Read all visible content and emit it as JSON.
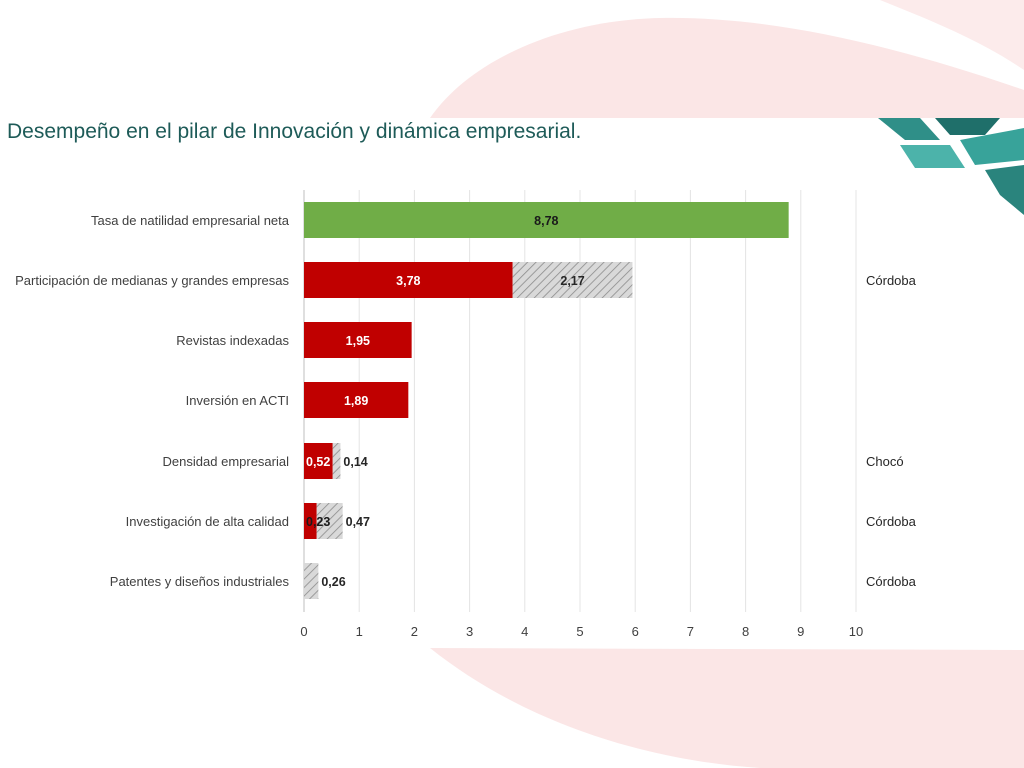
{
  "slide": {
    "title": "Desempeño en el pilar de Innovación y dinámica empresarial."
  },
  "colors": {
    "top_bar": "#70ad47",
    "main_bar": "#c00000",
    "gap_fill": "#d9d9d9",
    "gap_hatch": "#8c8c8c",
    "title": "#1e5b58",
    "accent_shape": "#fbe4e4",
    "logo_teal": "#2e8b84"
  },
  "chart_data": {
    "type": "bar",
    "orientation": "horizontal",
    "stacked": true,
    "title": "",
    "xlabel": "",
    "ylabel": "",
    "xlim": [
      0,
      10
    ],
    "x_ticks": [
      "0",
      "1",
      "2",
      "3",
      "4",
      "5",
      "6",
      "7",
      "8",
      "9",
      "10"
    ],
    "grid": "vertical",
    "categories": [
      "Tasa de natilidad empresarial neta",
      "Participación de medianas y grandes empresas",
      "Revistas indexadas",
      "Inversión en ACTI",
      "Densidad empresarial",
      "Investigación de alta calidad",
      "Patentes y diseños industriales"
    ],
    "series": [
      {
        "values": [
          8.78,
          3.78,
          1.95,
          1.89,
          0.52,
          0.23,
          null
        ],
        "labels": [
          "8,78",
          "3,78",
          "1,95",
          "1,89",
          "0,52",
          "0,23",
          ""
        ]
      },
      {
        "values": [
          null,
          2.17,
          null,
          null,
          0.14,
          0.47,
          0.26
        ],
        "labels": [
          "",
          "2,17",
          "",
          "",
          "0,14",
          "0,47",
          "0,26"
        ]
      }
    ],
    "annotations": [
      "",
      "Córdoba",
      "",
      "",
      "Chocó",
      "Córdoba",
      "Córdoba"
    ]
  }
}
